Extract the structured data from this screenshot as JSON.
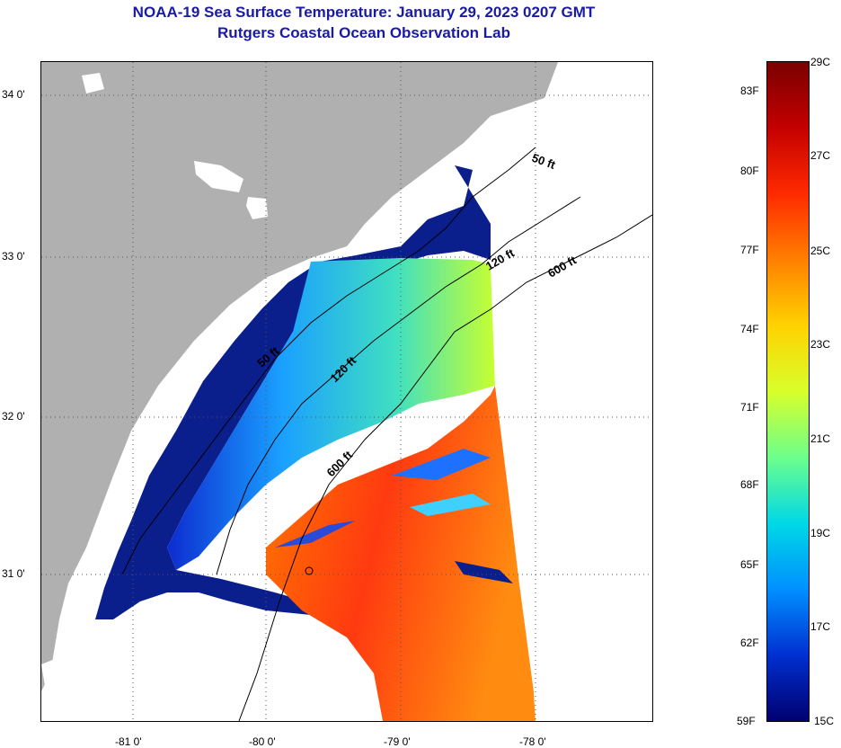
{
  "header": {
    "title_line1": "NOAA-19 Sea Surface Temperature:  January 29, 2023 0207 GMT",
    "title_line2": "Rutgers Coastal Ocean Observation Lab"
  },
  "map": {
    "latitude_labels": [
      "34 0'",
      "33 0'",
      "32 0'",
      "31 0'"
    ],
    "longitude_labels": [
      "-81 0'",
      "-80 0'",
      "-79 0'",
      "-78 0'"
    ],
    "isobath_labels": [
      "50 ft",
      "120 ft",
      "600 ft",
      "50 ft",
      "120 ft",
      "600 ft"
    ],
    "colors": {
      "land": "#b0b0b0",
      "no_data": "#ffffff",
      "cold": "#0a1e8c",
      "warm": "#e8200f"
    }
  },
  "colorbar": {
    "celsius_labels": [
      "29C",
      "27C",
      "25C",
      "23C",
      "21C",
      "19C",
      "17C",
      "15C"
    ],
    "fahrenheit_labels": [
      "83F",
      "80F",
      "77F",
      "74F",
      "71F",
      "68F",
      "65F",
      "62F",
      "59F"
    ],
    "range_celsius": [
      15,
      29
    ],
    "gradient_colors": [
      "#7a0000",
      "#c40000",
      "#ff2a00",
      "#ff8000",
      "#ffd200",
      "#d8ff2a",
      "#6cff8c",
      "#00d8e6",
      "#0090ff",
      "#0030d0",
      "#000070"
    ]
  }
}
